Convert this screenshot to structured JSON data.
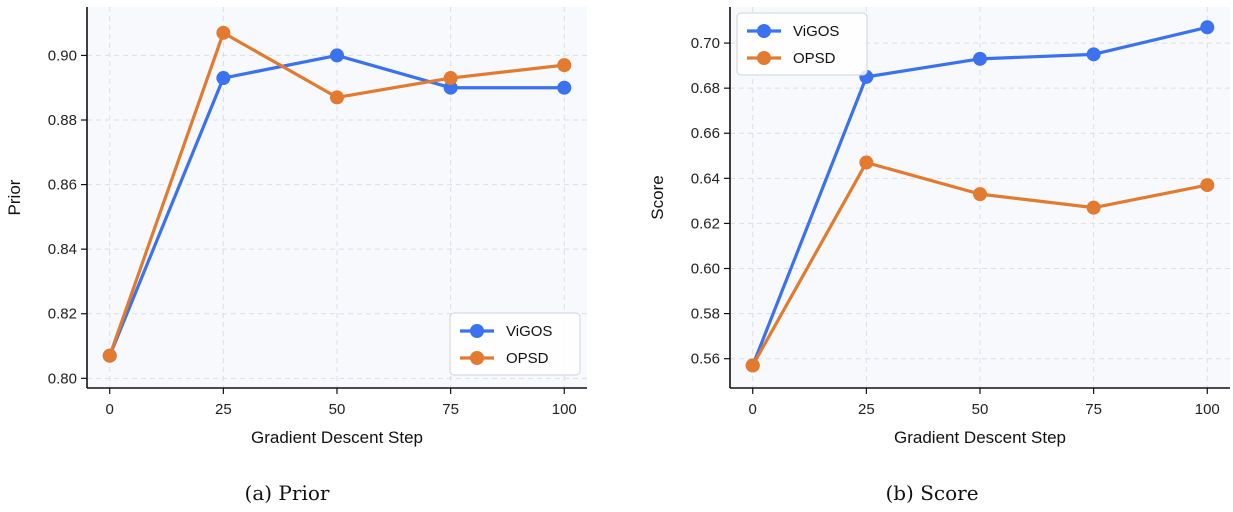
{
  "colors": {
    "ViGOS": "#3a72f0",
    "OPSD": "#e27b30",
    "plot_bg": "#f7f9fc",
    "grid": "#dcdfe6"
  },
  "captions": [
    "(a) Prior",
    "(b) Score"
  ],
  "chart_data": [
    {
      "type": "line",
      "xlabel": "Gradient Descent Step",
      "ylabel": "Prior",
      "x": [
        0,
        25,
        50,
        75,
        100
      ],
      "x_ticks": [
        "0",
        "25",
        "50",
        "75",
        "100"
      ],
      "y_ticks": [
        "0.80",
        "0.82",
        "0.84",
        "0.86",
        "0.88",
        "0.90"
      ],
      "xlim": [
        -5,
        105
      ],
      "ylim": [
        0.797,
        0.915
      ],
      "grid": true,
      "legend_position": "lower-right",
      "series": [
        {
          "name": "ViGOS",
          "values": [
            0.807,
            0.893,
            0.9,
            0.89,
            0.89
          ]
        },
        {
          "name": "OPSD",
          "values": [
            0.807,
            0.907,
            0.887,
            0.893,
            0.897
          ]
        }
      ]
    },
    {
      "type": "line",
      "xlabel": "Gradient Descent Step",
      "ylabel": "Score",
      "x": [
        0,
        25,
        50,
        75,
        100
      ],
      "x_ticks": [
        "0",
        "25",
        "50",
        "75",
        "100"
      ],
      "y_ticks": [
        "0.56",
        "0.58",
        "0.60",
        "0.62",
        "0.64",
        "0.66",
        "0.68",
        "0.70"
      ],
      "xlim": [
        -5,
        105
      ],
      "ylim": [
        0.547,
        0.716
      ],
      "grid": true,
      "legend_position": "upper-left",
      "series": [
        {
          "name": "ViGOS",
          "values": [
            0.557,
            0.685,
            0.693,
            0.695,
            0.707
          ]
        },
        {
          "name": "OPSD",
          "values": [
            0.557,
            0.647,
            0.633,
            0.627,
            0.637
          ]
        }
      ]
    }
  ]
}
